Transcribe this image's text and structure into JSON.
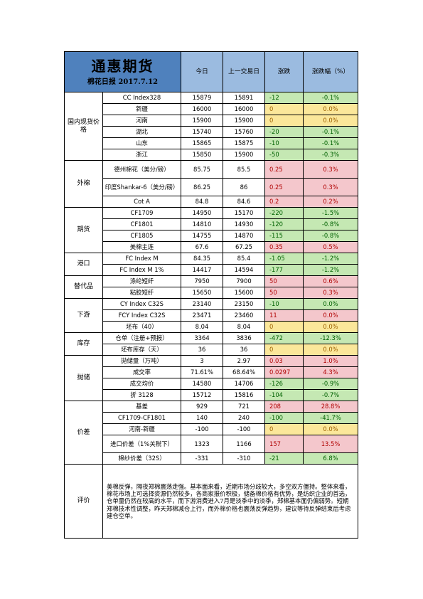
{
  "header": {
    "brand": "通惠期货",
    "subtitle": "棉花日报 2017.7.12",
    "col_today": "今日",
    "col_prev": "上一交易日",
    "col_change": "涨跌",
    "col_pct": "涨跌幅（%）"
  },
  "sections": [
    {
      "category": "国内现货价格",
      "rows": [
        {
          "item": "CC Index328",
          "today": "15879",
          "prev": "15891",
          "change": "-12",
          "pct": "-0.1%",
          "sign": "neg"
        },
        {
          "item": "新疆",
          "today": "16000",
          "prev": "16000",
          "change": "0",
          "pct": "0.0%",
          "sign": "zer"
        },
        {
          "item": "河南",
          "today": "15900",
          "prev": "15900",
          "change": "0",
          "pct": "0.0%",
          "sign": "zer"
        },
        {
          "item": "湖北",
          "today": "15740",
          "prev": "15760",
          "change": "-20",
          "pct": "-0.1%",
          "sign": "neg"
        },
        {
          "item": "山东",
          "today": "15865",
          "prev": "15875",
          "change": "-10",
          "pct": "-0.1%",
          "sign": "neg"
        },
        {
          "item": "浙江",
          "today": "15850",
          "prev": "15900",
          "change": "-50",
          "pct": "-0.3%",
          "sign": "neg"
        }
      ]
    },
    {
      "category": "外棉",
      "rows": [
        {
          "item": "德州棉花（美分/磅）",
          "today": "85.75",
          "prev": "85.5",
          "change": "0.25",
          "pct": "0.3%",
          "sign": "pos",
          "tall": true
        },
        {
          "item": "印度Shankar-6（美分/磅）",
          "today": "86.25",
          "prev": "86",
          "change": "0.25",
          "pct": "0.3%",
          "sign": "pos",
          "tall": true
        },
        {
          "item": "Cot A",
          "today": "84.8",
          "prev": "84.6",
          "change": "0.2",
          "pct": "0.2%",
          "sign": "pos"
        }
      ]
    },
    {
      "category": "期货",
      "rows": [
        {
          "item": "CF1709",
          "today": "14950",
          "prev": "15170",
          "change": "-220",
          "pct": "-1.5%",
          "sign": "neg"
        },
        {
          "item": "CF1801",
          "today": "14810",
          "prev": "14930",
          "change": "-120",
          "pct": "-0.8%",
          "sign": "neg"
        },
        {
          "item": "CF1805",
          "today": "14755",
          "prev": "14870",
          "change": "-115",
          "pct": "-0.8%",
          "sign": "neg"
        },
        {
          "item": "美棉主连",
          "today": "67.6",
          "prev": "67.25",
          "change": "0.35",
          "pct": "0.5%",
          "sign": "pos"
        }
      ]
    },
    {
      "category": "港口",
      "rows": [
        {
          "item": "FC Index M",
          "today": "84.35",
          "prev": "85.4",
          "change": "-1.05",
          "pct": "-1.2%",
          "sign": "neg"
        },
        {
          "item": "FC Index M 1%",
          "today": "14417",
          "prev": "14594",
          "change": "-177",
          "pct": "-1.2%",
          "sign": "neg"
        }
      ]
    },
    {
      "category": "替代品",
      "rows": [
        {
          "item": "涤纶短纤",
          "today": "7950",
          "prev": "7900",
          "change": "50",
          "pct": "0.6%",
          "sign": "pos"
        },
        {
          "item": "粘胶短纤",
          "today": "15650",
          "prev": "15600",
          "change": "50",
          "pct": "0.3%",
          "sign": "pos"
        }
      ]
    },
    {
      "category": "下游",
      "rows": [
        {
          "item": "CY Index C32S",
          "today": "23140",
          "prev": "23150",
          "change": "-10",
          "pct": "0.0%",
          "sign": "neg"
        },
        {
          "item": "FCY Index C32S",
          "today": "23471",
          "prev": "23460",
          "change": "11",
          "pct": "0.0%",
          "sign": "pos"
        },
        {
          "item": "坯布（40）",
          "today": "8.04",
          "prev": "8.04",
          "change": "0",
          "pct": "0.0%",
          "sign": "zer"
        }
      ]
    },
    {
      "category": "库存",
      "rows": [
        {
          "item": "仓单（注册+预报）",
          "today": "3364",
          "prev": "3836",
          "change": "-472",
          "pct": "-12.3%",
          "sign": "neg"
        },
        {
          "item": "坯布库存（天）",
          "today": "36",
          "prev": "36",
          "change": "0",
          "pct": "0.0%",
          "sign": "zer"
        }
      ]
    },
    {
      "category": "抛储",
      "rows": [
        {
          "item": "拋储量（万吨）",
          "today": "3",
          "prev": "2.97",
          "change": "0.03",
          "pct": "1.0%",
          "sign": "pos"
        },
        {
          "item": "成交率",
          "today": "71.61%",
          "prev": "68.64%",
          "change": "0.0297",
          "pct": "4.3%",
          "sign": "pos"
        },
        {
          "item": "成交均价",
          "today": "14580",
          "prev": "14706",
          "change": "-126",
          "pct": "-0.9%",
          "sign": "neg"
        },
        {
          "item": "折 3128",
          "today": "15712",
          "prev": "15816",
          "change": "-104",
          "pct": "-0.7%",
          "sign": "neg"
        }
      ]
    },
    {
      "category": "价差",
      "rows": [
        {
          "item": "基差",
          "today": "929",
          "prev": "721",
          "change": "208",
          "pct": "28.8%",
          "sign": "pos"
        },
        {
          "item": "CF1709-CF1801",
          "today": "140",
          "prev": "240",
          "change": "-100",
          "pct": "-41.7%",
          "sign": "neg"
        },
        {
          "item": "河南-新疆",
          "today": "-100",
          "prev": "-100",
          "change": "0",
          "pct": "0.0%",
          "sign": "zer"
        },
        {
          "item": "进口价差（1%关税下）",
          "today": "1323",
          "prev": "1166",
          "change": "157",
          "pct": "13.5%",
          "sign": "pos",
          "tall": true
        },
        {
          "item": "棉纱价差（32S）",
          "today": "-331",
          "prev": "-310",
          "change": "-21",
          "pct": "6.8%",
          "sign": "neg"
        }
      ]
    }
  ],
  "comment": {
    "label": "评价",
    "text": "美棉反弹，隔夜郑棉震荡走强。基本面来看，近期市场分歧较大，多空双方僵持。整体来看，棉花市场上可选择资源仍然较多，各商家报价积极，储备棉价格有优势，是纺织企业的首选，仓单量仍然在较高的水平，而下游消费进入7月是淡季中的淡季，郑棉基本面仍偏弱势。短期郑棉技术性调整，昨天郑棉减仓上行，而外棉价格也震荡反弹趋势，建议等待反弹结束后考虑建仓空单。"
  },
  "colors": {
    "title_bg": "#4f81bd",
    "header_bg": "#9bbbe0",
    "positive_bg": "#f4c7cc",
    "negative_bg": "#c5e8b3",
    "zero_bg": "#fbe79a"
  }
}
